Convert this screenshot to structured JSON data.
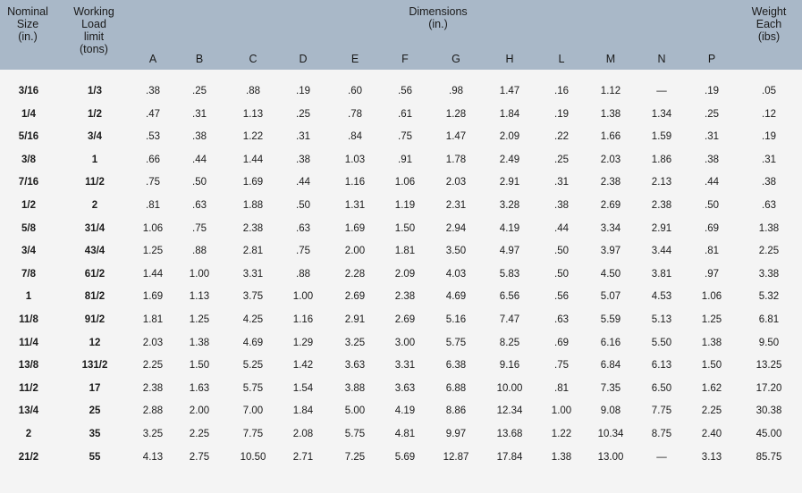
{
  "header": {
    "nominal": [
      "Nominal",
      "Size",
      "(in.)"
    ],
    "working": [
      "Working",
      "Load",
      "limit",
      "(tons)"
    ],
    "dimensions": [
      "Dimensions",
      "(in.)"
    ],
    "letters": [
      "A",
      "B",
      "C",
      "D",
      "E",
      "F",
      "G",
      "H",
      "L",
      "M",
      "N",
      "P"
    ],
    "weight": [
      "Weight",
      "Each",
      "(ibs)"
    ]
  },
  "rows": [
    [
      "3/16",
      "1/3",
      ".38",
      ".25",
      ".88",
      ".19",
      ".60",
      ".56",
      ".98",
      "1.47",
      ".16",
      "1.12",
      "—",
      ".19",
      ".05"
    ],
    [
      "1/4",
      "1/2",
      ".47",
      ".31",
      "1.13",
      ".25",
      ".78",
      ".61",
      "1.28",
      "1.84",
      ".19",
      "1.38",
      "1.34",
      ".25",
      ".12"
    ],
    [
      "5/16",
      "3/4",
      ".53",
      ".38",
      "1.22",
      ".31",
      ".84",
      ".75",
      "1.47",
      "2.09",
      ".22",
      "1.66",
      "1.59",
      ".31",
      ".19"
    ],
    [
      "3/8",
      "1",
      ".66",
      ".44",
      "1.44",
      ".38",
      "1.03",
      ".91",
      "1.78",
      "2.49",
      ".25",
      "2.03",
      "1.86",
      ".38",
      ".31"
    ],
    [
      "7/16",
      "11/2",
      ".75",
      ".50",
      "1.69",
      ".44",
      "1.16",
      "1.06",
      "2.03",
      "2.91",
      ".31",
      "2.38",
      "2.13",
      ".44",
      ".38"
    ],
    [
      "1/2",
      "2",
      ".81",
      ".63",
      "1.88",
      ".50",
      "1.31",
      "1.19",
      "2.31",
      "3.28",
      ".38",
      "2.69",
      "2.38",
      ".50",
      ".63"
    ],
    [
      "5/8",
      "31/4",
      "1.06",
      ".75",
      "2.38",
      ".63",
      "1.69",
      "1.50",
      "2.94",
      "4.19",
      ".44",
      "3.34",
      "2.91",
      ".69",
      "1.38"
    ],
    [
      "3/4",
      "43/4",
      "1.25",
      ".88",
      "2.81",
      ".75",
      "2.00",
      "1.81",
      "3.50",
      "4.97",
      ".50",
      "3.97",
      "3.44",
      ".81",
      "2.25"
    ],
    [
      "7/8",
      "61/2",
      "1.44",
      "1.00",
      "3.31",
      ".88",
      "2.28",
      "2.09",
      "4.03",
      "5.83",
      ".50",
      "4.50",
      "3.81",
      ".97",
      "3.38"
    ],
    [
      "1",
      "81/2",
      "1.69",
      "1.13",
      "3.75",
      "1.00",
      "2.69",
      "2.38",
      "4.69",
      "6.56",
      ".56",
      "5.07",
      "4.53",
      "1.06",
      "5.32"
    ],
    [
      "11/8",
      "91/2",
      "1.81",
      "1.25",
      "4.25",
      "1.16",
      "2.91",
      "2.69",
      "5.16",
      "7.47",
      ".63",
      "5.59",
      "5.13",
      "1.25",
      "6.81"
    ],
    [
      "11/4",
      "12",
      "2.03",
      "1.38",
      "4.69",
      "1.29",
      "3.25",
      "3.00",
      "5.75",
      "8.25",
      ".69",
      "6.16",
      "5.50",
      "1.38",
      "9.50"
    ],
    [
      "13/8",
      "131/2",
      "2.25",
      "1.50",
      "5.25",
      "1.42",
      "3.63",
      "3.31",
      "6.38",
      "9.16",
      ".75",
      "6.84",
      "6.13",
      "1.50",
      "13.25"
    ],
    [
      "11/2",
      "17",
      "2.38",
      "1.63",
      "5.75",
      "1.54",
      "3.88",
      "3.63",
      "6.88",
      "10.00",
      ".81",
      "7.35",
      "6.50",
      "1.62",
      "17.20"
    ],
    [
      "13/4",
      "25",
      "2.88",
      "2.00",
      "7.00",
      "1.84",
      "5.00",
      "4.19",
      "8.86",
      "12.34",
      "1.00",
      "9.08",
      "7.75",
      "2.25",
      "30.38"
    ],
    [
      "2",
      "35",
      "3.25",
      "2.25",
      "7.75",
      "2.08",
      "5.75",
      "4.81",
      "9.97",
      "13.68",
      "1.22",
      "10.34",
      "8.75",
      "2.40",
      "45.00"
    ],
    [
      "21/2",
      "55",
      "4.13",
      "2.75",
      "10.50",
      "2.71",
      "7.25",
      "5.69",
      "12.87",
      "17.84",
      "1.38",
      "13.00",
      "—",
      "3.13",
      "85.75"
    ]
  ]
}
